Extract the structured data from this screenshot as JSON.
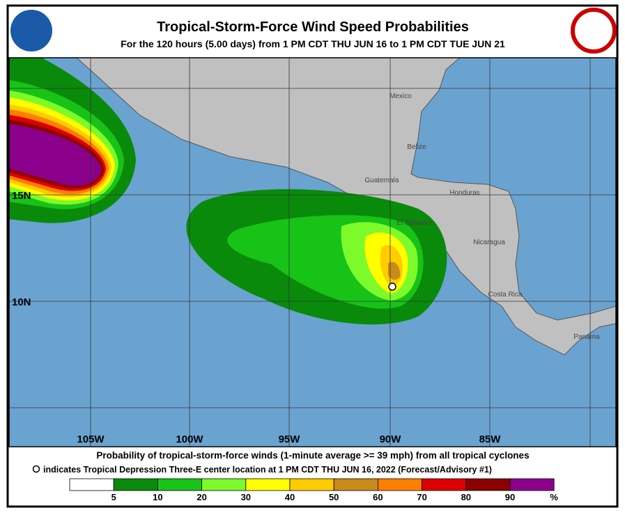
{
  "header": {
    "title": "Tropical-Storm-Force Wind Speed Probabilities",
    "subtitle": "For the 120 hours (5.00 days) from 1 PM CDT THU JUN 16 to 1 PM CDT TUE JUN 21"
  },
  "map": {
    "lat_labels": [
      "15N",
      "10N"
    ],
    "lon_labels": [
      "105W",
      "100W",
      "95W",
      "90W",
      "85W"
    ],
    "places": [
      "Mexico",
      "Belize",
      "Guatemala",
      "Honduras",
      "El Salvador",
      "Nicaragua",
      "Costa Rica",
      "Panama"
    ]
  },
  "footer": {
    "line1": "Probability of tropical-storm-force winds (1-minute average >= 39 mph) from all tropical cyclones",
    "line2": "indicates Tropical Depression Three-E center location at 1 PM CDT THU JUN 16, 2022 (Forecast/Advisory #1)",
    "legend": {
      "labels": [
        "5",
        "10",
        "20",
        "30",
        "40",
        "50",
        "60",
        "70",
        "80",
        "90",
        "%"
      ],
      "colors": [
        "#ffffff",
        "#0a8a0a",
        "#18c318",
        "#7dfa2a",
        "#ffff00",
        "#ffcc00",
        "#c88a1a",
        "#ff7f00",
        "#dd0000",
        "#8b0000",
        "#8b008b"
      ]
    }
  }
}
